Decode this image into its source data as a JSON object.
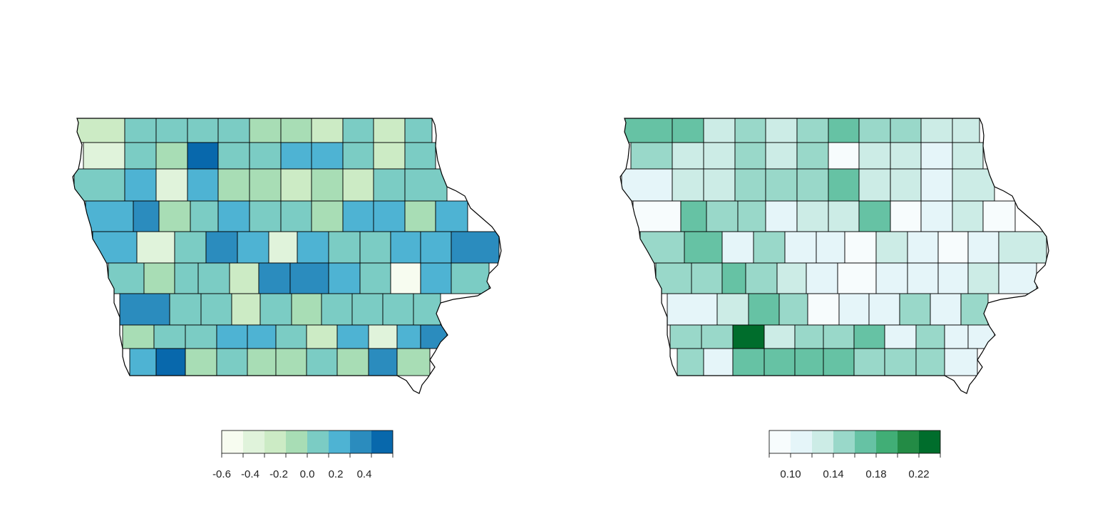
{
  "maps": [
    {
      "name": "left",
      "palette": [
        "#f7fcf0",
        "#e0f3db",
        "#ccebc5",
        "#a8ddb5",
        "#7bccc4",
        "#4eb3d3",
        "#2b8cbe",
        "#0868ac"
      ],
      "legend": {
        "bin_edges": [
          -0.6,
          -0.45,
          -0.3,
          -0.15,
          0.0,
          0.15,
          0.3,
          0.45,
          0.5
        ],
        "ticks": [
          {
            "value": -0.6,
            "label": "-0.6"
          },
          {
            "value": -0.4,
            "label": "-0.4"
          },
          {
            "value": -0.2,
            "label": "-0.2"
          },
          {
            "value": 0.0,
            "label": "0.0"
          },
          {
            "value": 0.2,
            "label": "0.2"
          },
          {
            "value": 0.4,
            "label": "0.4"
          }
        ]
      },
      "grid": [
        [
          2,
          4,
          4,
          4,
          4,
          3,
          3,
          2,
          4,
          2,
          4
        ],
        [
          1,
          4,
          3,
          7,
          4,
          4,
          5,
          5,
          4,
          2,
          4
        ],
        [
          4,
          5,
          1,
          5,
          3,
          3,
          2,
          3,
          2,
          4,
          4
        ],
        [
          5,
          6,
          3,
          4,
          5,
          4,
          4,
          3,
          5,
          5,
          3,
          5
        ],
        [
          5,
          1,
          4,
          6,
          5,
          1,
          5,
          4,
          4,
          5,
          5,
          6
        ],
        [
          4,
          3,
          4,
          4,
          2,
          6,
          6,
          5,
          4,
          0,
          5,
          4
        ],
        [
          6,
          4,
          4,
          2,
          4,
          3,
          4,
          4,
          4,
          4
        ],
        [
          3,
          4,
          4,
          5,
          5,
          4,
          2,
          5,
          1,
          5,
          6
        ],
        [
          5,
          7,
          3,
          4,
          3,
          3,
          4,
          3,
          6,
          3
        ]
      ]
    },
    {
      "name": "right",
      "palette": [
        "#f7fcfd",
        "#e5f5f9",
        "#ccece6",
        "#99d8c9",
        "#66c2a4",
        "#41ae76",
        "#238b45",
        "#006d2c"
      ],
      "legend": {
        "bin_edges": [
          0.08,
          0.1,
          0.12,
          0.14,
          0.16,
          0.18,
          0.2,
          0.22,
          0.23
        ],
        "ticks": [
          {
            "value": 0.1,
            "label": "0.10"
          },
          {
            "value": 0.14,
            "label": "0.14"
          },
          {
            "value": 0.18,
            "label": "0.18"
          },
          {
            "value": 0.22,
            "label": "0.22"
          }
        ]
      },
      "grid": [
        [
          4,
          4,
          2,
          3,
          2,
          3,
          4,
          3,
          3,
          2,
          2
        ],
        [
          3,
          2,
          2,
          3,
          2,
          3,
          0,
          2,
          2,
          1,
          2
        ],
        [
          1,
          2,
          2,
          3,
          3,
          3,
          4,
          2,
          2,
          1,
          2
        ],
        [
          0,
          4,
          3,
          3,
          1,
          2,
          2,
          4,
          0,
          1,
          2,
          0
        ],
        [
          3,
          4,
          1,
          3,
          1,
          1,
          0,
          2,
          1,
          0,
          1,
          2
        ],
        [
          3,
          3,
          4,
          3,
          2,
          1,
          0,
          1,
          1,
          1,
          2,
          1
        ],
        [
          1,
          2,
          4,
          3,
          0,
          1,
          1,
          3,
          1,
          3
        ],
        [
          3,
          3,
          7,
          2,
          3,
          3,
          4,
          1,
          3,
          1,
          1
        ],
        [
          3,
          1,
          4,
          4,
          4,
          4,
          3,
          3,
          3,
          1
        ]
      ]
    }
  ]
}
